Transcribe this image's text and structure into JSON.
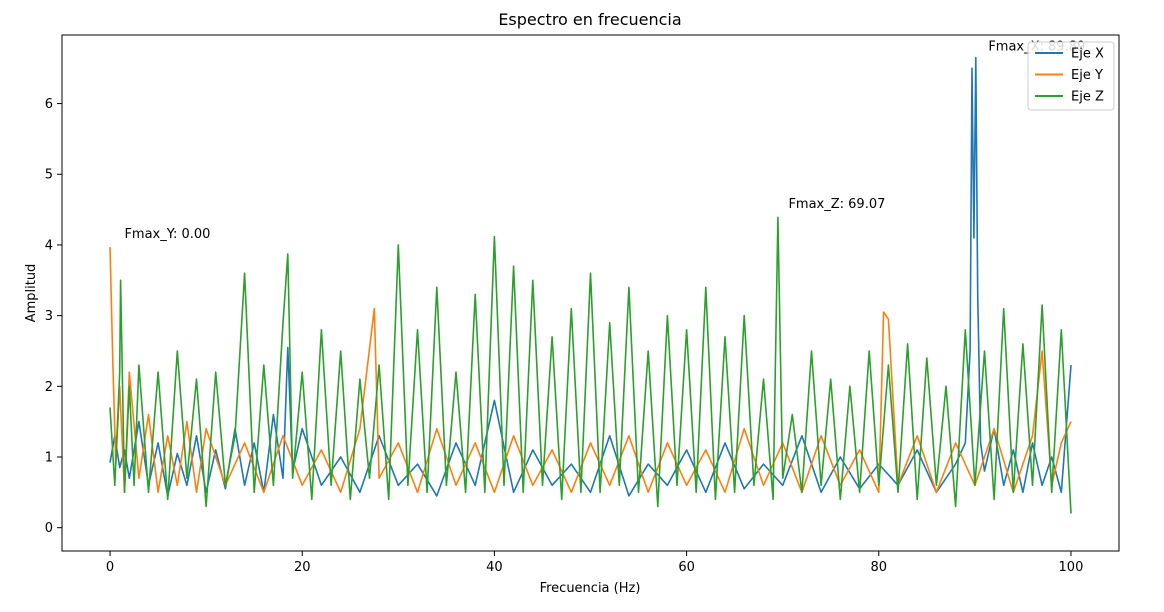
{
  "chart_data": {
    "type": "line",
    "title": "Espectro en frecuencia",
    "xlabel": "Frecuencia (Hz)",
    "ylabel": "Amplitud",
    "xlim": [
      -5,
      105
    ],
    "ylim": [
      -0.33,
      6.97
    ],
    "xticks": [
      0,
      20,
      40,
      60,
      80,
      100
    ],
    "yticks": [
      0,
      1,
      2,
      3,
      4,
      5,
      6
    ],
    "grid": false,
    "legend_position": "upper right",
    "series": [
      {
        "name": "Eje X",
        "color": "#1f77b4",
        "x": [
          0,
          0.5,
          1,
          1.5,
          2,
          3,
          4,
          5,
          6,
          7,
          8,
          9,
          10,
          11,
          12,
          13,
          14,
          15,
          16,
          17,
          18,
          18.5,
          19,
          20,
          22,
          24,
          26,
          28,
          30,
          32,
          34,
          36,
          38,
          40,
          42,
          44,
          46,
          48,
          50,
          52,
          54,
          56,
          58,
          60,
          62,
          64,
          66,
          68,
          70,
          72,
          74,
          76,
          78,
          80,
          82,
          84,
          86,
          88,
          89,
          89.5,
          89.7,
          89.9,
          90.1,
          90.3,
          90.6,
          91,
          92,
          93,
          94,
          95,
          96,
          97,
          98,
          99,
          100
        ],
        "values": [
          0.92,
          1.3,
          0.85,
          1.1,
          0.7,
          1.5,
          0.6,
          1.2,
          0.45,
          1.05,
          0.6,
          1.3,
          0.5,
          1.1,
          0.55,
          1.4,
          0.6,
          1.2,
          0.5,
          1.6,
          0.7,
          2.55,
          0.8,
          1.4,
          0.6,
          1.0,
          0.5,
          1.3,
          0.6,
          0.9,
          0.45,
          1.2,
          0.6,
          1.8,
          0.5,
          1.1,
          0.6,
          0.9,
          0.5,
          1.3,
          0.45,
          0.9,
          0.6,
          1.1,
          0.5,
          1.2,
          0.55,
          0.9,
          0.6,
          1.3,
          0.5,
          1.0,
          0.55,
          0.9,
          0.6,
          1.1,
          0.5,
          0.9,
          1.2,
          2.5,
          6.5,
          4.1,
          6.65,
          3.3,
          1.2,
          0.8,
          1.4,
          0.6,
          1.1,
          0.5,
          1.2,
          0.6,
          1.0,
          0.5,
          2.3
        ]
      },
      {
        "name": "Eje Y",
        "color": "#ff7f0e",
        "x": [
          0,
          0.3,
          0.6,
          1,
          1.5,
          2,
          3,
          4,
          5,
          6,
          7,
          8,
          9,
          10,
          12,
          14,
          16,
          18,
          20,
          22,
          24,
          26,
          27.5,
          28,
          30,
          32,
          34,
          36,
          38,
          40,
          42,
          44,
          46,
          48,
          50,
          52,
          54,
          56,
          58,
          60,
          62,
          64,
          66,
          68,
          70,
          72,
          74,
          76,
          78,
          80,
          80.5,
          81,
          82,
          84,
          86,
          88,
          90,
          92,
          94,
          96,
          97,
          98,
          99,
          100
        ],
        "values": [
          3.97,
          2.3,
          0.9,
          2.0,
          0.5,
          2.2,
          0.7,
          1.6,
          0.5,
          1.3,
          0.6,
          1.5,
          0.5,
          1.4,
          0.6,
          1.2,
          0.5,
          1.3,
          0.6,
          1.1,
          0.5,
          1.4,
          3.1,
          0.7,
          1.2,
          0.5,
          1.4,
          0.6,
          1.2,
          0.5,
          1.3,
          0.6,
          1.1,
          0.5,
          1.2,
          0.6,
          1.3,
          0.5,
          1.2,
          0.6,
          1.1,
          0.5,
          1.4,
          0.6,
          1.2,
          0.5,
          1.3,
          0.6,
          1.1,
          0.5,
          3.05,
          2.95,
          0.6,
          1.3,
          0.5,
          1.2,
          0.6,
          1.4,
          0.5,
          1.3,
          2.5,
          0.6,
          1.2,
          1.5
        ]
      },
      {
        "name": "Eje Z",
        "color": "#2ca02c",
        "x": [
          0,
          0.5,
          1,
          1.1,
          1.5,
          2,
          2.5,
          3,
          4,
          5,
          6,
          7,
          8,
          9,
          10,
          11,
          12,
          13,
          14,
          15,
          16,
          17,
          18,
          18.5,
          19,
          20,
          21,
          22,
          23,
          24,
          25,
          26,
          27,
          28,
          29,
          30,
          31,
          32,
          33,
          34,
          35,
          36,
          37,
          38,
          39,
          40,
          41,
          42,
          43,
          44,
          45,
          46,
          47,
          48,
          49,
          50,
          51,
          52,
          53,
          54,
          55,
          56,
          57,
          58,
          59,
          60,
          61,
          62,
          63,
          64,
          65,
          66,
          67,
          68,
          69,
          69.5,
          70,
          71,
          72,
          73,
          74,
          75,
          76,
          77,
          78,
          79,
          80,
          81,
          82,
          83,
          84,
          85,
          86,
          87,
          88,
          89,
          90,
          91,
          92,
          93,
          94,
          95,
          96,
          97,
          98,
          99,
          100
        ],
        "values": [
          1.7,
          0.6,
          2.2,
          3.5,
          0.5,
          2.0,
          0.6,
          2.3,
          0.5,
          2.2,
          0.4,
          2.5,
          0.7,
          2.1,
          0.3,
          2.2,
          0.6,
          1.3,
          3.6,
          0.5,
          2.3,
          0.6,
          2.9,
          3.87,
          0.7,
          2.2,
          0.4,
          2.8,
          0.6,
          2.5,
          0.4,
          2.1,
          0.7,
          2.3,
          0.4,
          4.0,
          0.6,
          2.8,
          0.5,
          3.4,
          0.6,
          2.2,
          0.5,
          3.3,
          0.5,
          4.12,
          0.6,
          3.7,
          0.5,
          3.5,
          0.6,
          2.7,
          0.4,
          3.1,
          0.5,
          3.6,
          0.5,
          2.9,
          0.6,
          3.4,
          0.5,
          2.5,
          0.3,
          3.0,
          0.6,
          2.8,
          0.5,
          3.4,
          0.4,
          2.7,
          0.5,
          3.0,
          0.6,
          2.1,
          0.4,
          4.39,
          0.7,
          1.6,
          0.5,
          2.5,
          0.6,
          2.1,
          0.4,
          2.0,
          0.5,
          2.5,
          0.6,
          2.3,
          0.5,
          2.6,
          0.4,
          2.4,
          0.6,
          2.0,
          0.3,
          2.8,
          0.6,
          2.5,
          0.4,
          3.1,
          0.5,
          2.6,
          0.6,
          3.15,
          0.5,
          2.8,
          0.2
        ]
      }
    ],
    "annotations": [
      {
        "text": "Fmax_Y: 0.00",
        "x": 1.5,
        "y": 4.17
      },
      {
        "text": "Fmax_Z: 69.07",
        "x": 70.6,
        "y": 4.59
      },
      {
        "text": "Fmax_X: 89.89",
        "x": 91.4,
        "y": 6.82
      }
    ]
  }
}
